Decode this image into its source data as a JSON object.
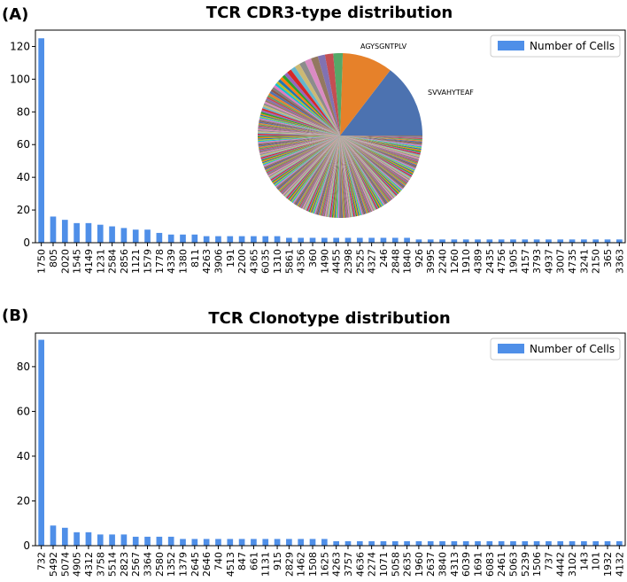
{
  "chart_data": [
    {
      "panel_label": "(A)",
      "type": "bar",
      "title": "TCR CDR3-type distribution",
      "xlabel": "",
      "ylabel": "",
      "ylim": [
        0,
        130
      ],
      "yticks": [
        0,
        20,
        40,
        60,
        80,
        100,
        120
      ],
      "legend": "Number of Cells",
      "legend_position": "top-right",
      "bar_color": "#4f8fe8",
      "categories": [
        "1750",
        "805",
        "2020",
        "1545",
        "4149",
        "1231",
        "2584",
        "2856",
        "1121",
        "1579",
        "1778",
        "4339",
        "1380",
        "811",
        "4263",
        "3906",
        "191",
        "2200",
        "4365",
        "6035",
        "1310",
        "5861",
        "4356",
        "360",
        "1490",
        "4455",
        "2398",
        "2525",
        "4327",
        "246",
        "2848",
        "1840",
        "926",
        "3995",
        "2240",
        "1260",
        "1910",
        "4389",
        "2435",
        "4756",
        "1905",
        "4157",
        "3793",
        "4937",
        "3007",
        "4735",
        "3241",
        "2150",
        "365",
        "3363"
      ],
      "values": [
        125,
        16,
        14,
        12,
        12,
        11,
        10,
        9,
        8,
        8,
        6,
        5,
        5,
        5,
        4,
        4,
        4,
        4,
        4,
        4,
        4,
        3,
        3,
        3,
        3,
        3,
        3,
        3,
        3,
        3,
        3,
        3,
        2,
        2,
        2,
        2,
        2,
        2,
        2,
        2,
        2,
        2,
        2,
        2,
        2,
        2,
        2,
        2,
        2,
        2
      ],
      "inset_pie": {
        "type": "pie",
        "labels": [
          "SVVAHYTEAF",
          "AGYSGNTPLV"
        ],
        "values": [
          125,
          85,
          16,
          14,
          12,
          12,
          11,
          10,
          9,
          8,
          8,
          6,
          5,
          5,
          5,
          4,
          4,
          4,
          4,
          4,
          4,
          4,
          3,
          3,
          3,
          3,
          3,
          3,
          3,
          3,
          3,
          3,
          3,
          2,
          2,
          2,
          2,
          2,
          2,
          2,
          2,
          2,
          2,
          2,
          2,
          2,
          2,
          2,
          2,
          2,
          2,
          2,
          2,
          2,
          2,
          2,
          2,
          2,
          2,
          2,
          2,
          2,
          2,
          2,
          2,
          2,
          2,
          2,
          2,
          2,
          2,
          2,
          2,
          2,
          2,
          2,
          2,
          2,
          2,
          2,
          2,
          2,
          2,
          2,
          2,
          2,
          2,
          2,
          2,
          2,
          2,
          2,
          2,
          2,
          2,
          2,
          2,
          2,
          2,
          2,
          2,
          2,
          2,
          2,
          2,
          2,
          2,
          2,
          2,
          2,
          2,
          2,
          2,
          2,
          2,
          2,
          2,
          2,
          2,
          2,
          2,
          2,
          2,
          2,
          2,
          2,
          2,
          2,
          2,
          2,
          2,
          2,
          2,
          2,
          2,
          2,
          2,
          2,
          2,
          2,
          2,
          2,
          2,
          2,
          2,
          2,
          2,
          2,
          2,
          2,
          2,
          2,
          2,
          2,
          2,
          2,
          2,
          2,
          2,
          2,
          2,
          2,
          2,
          2,
          2,
          2,
          2,
          2,
          2,
          2,
          2,
          2,
          2,
          2,
          2,
          2,
          2,
          2,
          2,
          2,
          2,
          2,
          2,
          2,
          2,
          2,
          2,
          2,
          2,
          2,
          2,
          2,
          2,
          2,
          2,
          2,
          2,
          2,
          2,
          2,
          2,
          2,
          2,
          2,
          2,
          2,
          2,
          2,
          2,
          2,
          2,
          2,
          2,
          2,
          2,
          2,
          2,
          2,
          2,
          2,
          2,
          2,
          2,
          2,
          2,
          2,
          2,
          2,
          2,
          2,
          2,
          2,
          2,
          2,
          2,
          2,
          2,
          2,
          2,
          2,
          2,
          2,
          2,
          2,
          2,
          2,
          2,
          2,
          2,
          2,
          2,
          2,
          2,
          2,
          2,
          2,
          2,
          2,
          2,
          2,
          2,
          2,
          2,
          2,
          2,
          2
        ],
        "colors": [
          "#4c72b0",
          "#e6812a",
          "#55a868",
          "#c44e52",
          "#8172b2",
          "#937860",
          "#da8bc3",
          "#8c8c8c",
          "#ccb974",
          "#64b5cd",
          "#d62728",
          "#9467bd",
          "#2ca02c",
          "#ff7f0e",
          "#1f77b4",
          "#bcbd22",
          "#17becf",
          "#e377c2",
          "#7f7f7f",
          "#8c564b"
        ]
      }
    },
    {
      "panel_label": "(B)",
      "type": "bar",
      "title": "TCR Clonotype distribution",
      "xlabel": "",
      "ylabel": "",
      "ylim": [
        0,
        95
      ],
      "yticks": [
        0,
        20,
        40,
        60,
        80
      ],
      "legend": "Number of Cells",
      "legend_position": "top-right",
      "bar_color": "#4f8fe8",
      "categories": [
        "732",
        "5492",
        "5074",
        "4905",
        "4312",
        "3758",
        "5514",
        "2823",
        "2567",
        "3364",
        "2580",
        "1352",
        "1379",
        "2645",
        "2646",
        "740",
        "4513",
        "847",
        "661",
        "1131",
        "915",
        "2829",
        "1462",
        "1508",
        "1625",
        "4263",
        "3757",
        "4636",
        "2274",
        "1071",
        "5058",
        "2635",
        "1960",
        "2637",
        "3840",
        "4313",
        "6039",
        "1691",
        "6083",
        "2461",
        "5063",
        "5239",
        "1506",
        "737",
        "4442",
        "3102",
        "143",
        "101",
        "1932",
        "4132"
      ],
      "values": [
        92,
        9,
        8,
        6,
        6,
        5,
        5,
        5,
        4,
        4,
        4,
        4,
        3,
        3,
        3,
        3,
        3,
        3,
        3,
        3,
        3,
        3,
        3,
        3,
        3,
        2,
        2,
        2,
        2,
        2,
        2,
        2,
        2,
        2,
        2,
        2,
        2,
        2,
        2,
        2,
        2,
        2,
        2,
        2,
        2,
        2,
        2,
        2,
        2,
        2
      ]
    }
  ]
}
